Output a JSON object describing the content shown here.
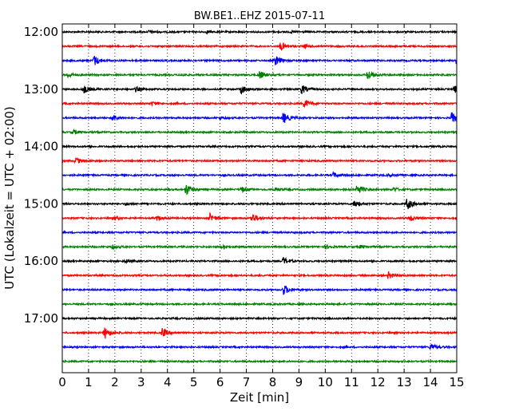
{
  "chart_data": {
    "type": "line",
    "title": "BW.BE1..EHZ 2015-07-11",
    "xlabel": "Zeit  [min]",
    "ylabel": "UTC (Lokalzeit = UTC + 02:00)",
    "xlim": [
      0,
      15
    ],
    "xticks": [
      0,
      1,
      2,
      3,
      4,
      5,
      6,
      7,
      8,
      9,
      10,
      11,
      12,
      13,
      14,
      15
    ],
    "yticks": [
      "12:00",
      "13:00",
      "14:00",
      "15:00",
      "16:00",
      "17:00"
    ],
    "trace_interval_minutes": 15,
    "grid": "vertical dotted",
    "color_cycle": [
      "#000000",
      "#ff0000",
      "#0000ff",
      "#008000"
    ],
    "series": [
      {
        "start": "12:00",
        "color": "#000000",
        "events": [
          [
            3.3,
            0.9
          ],
          [
            5.5,
            0.7
          ],
          [
            8.7,
            0.5
          ]
        ]
      },
      {
        "start": "12:15",
        "color": "#ff0000",
        "events": [
          [
            8.3,
            2.6
          ],
          [
            9.2,
            0.9
          ]
        ]
      },
      {
        "start": "12:30",
        "color": "#0000ff",
        "events": [
          [
            1.2,
            3.2
          ],
          [
            8.1,
            2.8
          ],
          [
            15.0,
            3.0
          ]
        ]
      },
      {
        "start": "12:45",
        "color": "#008000",
        "events": [
          [
            0.2,
            1.4
          ],
          [
            7.5,
            2.3
          ],
          [
            11.6,
            3.2
          ],
          [
            4.5,
            0.5
          ]
        ]
      },
      {
        "start": "13:00",
        "color": "#000000",
        "events": [
          [
            0.8,
            2.4
          ],
          [
            2.8,
            1.4
          ],
          [
            6.8,
            2.6
          ],
          [
            9.1,
            2.7
          ],
          [
            14.9,
            2.2
          ]
        ]
      },
      {
        "start": "13:15",
        "color": "#ff0000",
        "events": [
          [
            9.2,
            2.7
          ],
          [
            3.4,
            0.9
          ]
        ]
      },
      {
        "start": "13:30",
        "color": "#0000ff",
        "events": [
          [
            1.9,
            2.2
          ],
          [
            8.4,
            3.2
          ],
          [
            14.8,
            3.2
          ],
          [
            6.0,
            0.7
          ]
        ]
      },
      {
        "start": "13:45",
        "color": "#008000",
        "events": [
          [
            0.4,
            1.4
          ]
        ]
      },
      {
        "start": "14:00",
        "color": "#000000",
        "events": []
      },
      {
        "start": "14:15",
        "color": "#ff0000",
        "events": [
          [
            0.5,
            2.1
          ]
        ]
      },
      {
        "start": "14:30",
        "color": "#0000ff",
        "events": [
          [
            10.3,
            1.4
          ],
          [
            12.4,
            0.7
          ]
        ]
      },
      {
        "start": "14:45",
        "color": "#008000",
        "events": [
          [
            4.7,
            3.6
          ],
          [
            6.8,
            1.6
          ],
          [
            8.1,
            0.9
          ],
          [
            11.2,
            2.9
          ],
          [
            12.6,
            1.2
          ]
        ]
      },
      {
        "start": "15:00",
        "color": "#000000",
        "events": [
          [
            2.4,
            0.8
          ],
          [
            11.1,
            2.4
          ],
          [
            13.1,
            3.6
          ]
        ]
      },
      {
        "start": "15:15",
        "color": "#ff0000",
        "events": [
          [
            2.0,
            1.1
          ],
          [
            3.6,
            1.1
          ],
          [
            5.6,
            2.7
          ],
          [
            7.2,
            3.1
          ],
          [
            13.2,
            2.1
          ]
        ]
      },
      {
        "start": "15:30",
        "color": "#0000ff",
        "events": []
      },
      {
        "start": "15:45",
        "color": "#008000",
        "events": [
          [
            1.9,
            1.1
          ],
          [
            6.1,
            1.2
          ],
          [
            10.0,
            1.1
          ],
          [
            11.3,
            0.9
          ]
        ]
      },
      {
        "start": "16:00",
        "color": "#000000",
        "events": [
          [
            2.4,
            0.9
          ],
          [
            8.4,
            2.1
          ]
        ]
      },
      {
        "start": "16:15",
        "color": "#ff0000",
        "events": [
          [
            12.4,
            2.1
          ]
        ]
      },
      {
        "start": "16:30",
        "color": "#0000ff",
        "events": [
          [
            8.4,
            3.1
          ]
        ]
      },
      {
        "start": "16:45",
        "color": "#008000",
        "events": []
      },
      {
        "start": "17:00",
        "color": "#000000",
        "events": []
      },
      {
        "start": "17:15",
        "color": "#ff0000",
        "events": [
          [
            1.6,
            3.7
          ],
          [
            3.8,
            2.6
          ]
        ]
      },
      {
        "start": "17:30",
        "color": "#0000ff",
        "events": [
          [
            14.0,
            2.0
          ]
        ]
      },
      {
        "start": "17:45",
        "color": "#008000",
        "events": []
      }
    ]
  }
}
